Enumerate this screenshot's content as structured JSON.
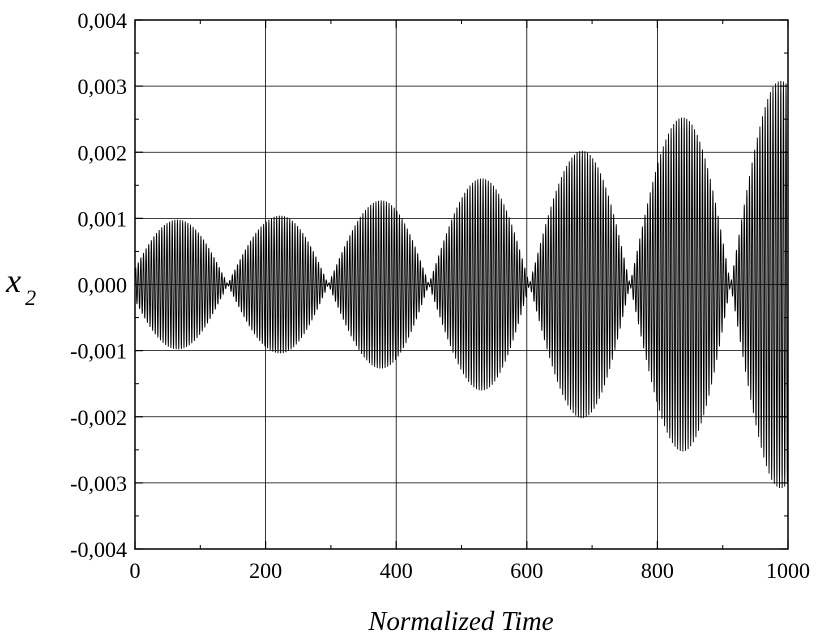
{
  "chart_data": {
    "type": "line",
    "xlabel": "Normalized Time",
    "ylabel": {
      "base": "x",
      "subscript": "2"
    },
    "xlim": [
      0,
      1000
    ],
    "ylim": [
      -0.004,
      0.004
    ],
    "x_ticks": [
      0,
      200,
      400,
      600,
      800,
      1000
    ],
    "x_tick_labels": [
      "0",
      "200",
      "400",
      "600",
      "800",
      "1000"
    ],
    "y_ticks": [
      -0.004,
      -0.003,
      -0.002,
      -0.001,
      0,
      0.001,
      0.002,
      0.003,
      0.004
    ],
    "y_tick_labels": [
      "-0,004",
      "-0,003",
      "-0,002",
      "-0,001",
      "0,000",
      "0,001",
      "0,002",
      "0,003",
      "0,004"
    ],
    "grid": true,
    "legend": "none",
    "line_color": "#000000",
    "series": [
      {
        "description_of_shape": "fast oscillation with beating envelope of growing amplitude",
        "carrier_period": 4,
        "envelope_period": 154,
        "beat_peaks": [
          {
            "x": 65,
            "amplitude": 0.00098
          },
          {
            "x": 205,
            "amplitude": 0.00102
          },
          {
            "x": 355,
            "amplitude": 0.00123
          },
          {
            "x": 505,
            "amplitude": 0.00154
          },
          {
            "x": 660,
            "amplitude": 0.00195
          },
          {
            "x": 818,
            "amplitude": 0.00245
          },
          {
            "x": 975,
            "amplitude": 0.00308
          }
        ]
      }
    ]
  }
}
